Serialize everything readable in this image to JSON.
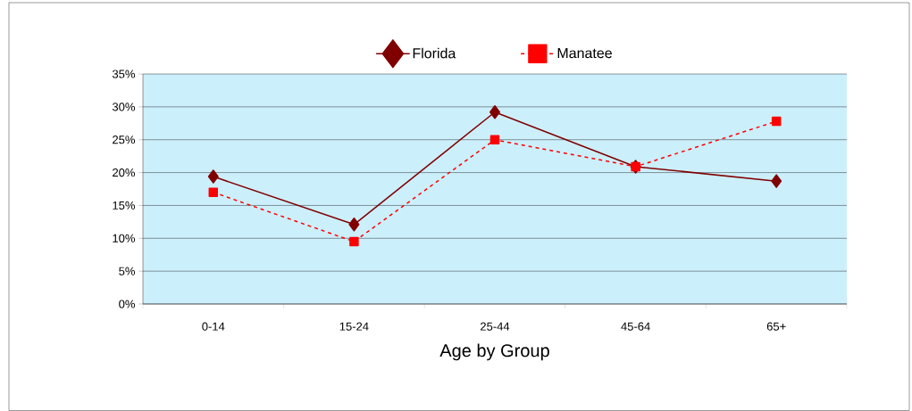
{
  "chart_data": {
    "type": "line",
    "xlabel": "Age by Group",
    "categories": [
      "0-14",
      "15-24",
      "25-44",
      "45-64",
      "65+"
    ],
    "series": [
      {
        "name": "Florida",
        "color": "#800000",
        "values": [
          19.4,
          12.1,
          29.2,
          20.9,
          18.7
        ],
        "marker": "diamond",
        "line_style": "solid"
      },
      {
        "name": "Manatee",
        "color": "#ff0000",
        "values": [
          17.0,
          9.5,
          25.0,
          20.9,
          27.8
        ],
        "marker": "square",
        "line_style": "dashed"
      }
    ],
    "ylim": [
      0,
      35
    ],
    "yticks": [
      {
        "value": 0,
        "label": "0%"
      },
      {
        "value": 5,
        "label": "5%"
      },
      {
        "value": 10,
        "label": "10%"
      },
      {
        "value": 15,
        "label": "15%"
      },
      {
        "value": 20,
        "label": "20%"
      },
      {
        "value": 25,
        "label": "25%"
      },
      {
        "value": 30,
        "label": "30%"
      },
      {
        "value": 35,
        "label": "35%"
      }
    ],
    "grid": "y",
    "legend": "top"
  }
}
